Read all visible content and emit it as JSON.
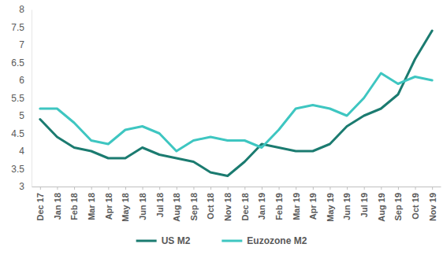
{
  "chart_data": {
    "type": "line",
    "categories": [
      "Dec 17",
      "Jan 18",
      "Feb 18",
      "Mar 18",
      "Apr 18",
      "May 18",
      "Jun 18",
      "Jul 18",
      "Aug 18",
      "Sep 18",
      "Oct 18",
      "Nov 18",
      "Dec 18",
      "Jan 19",
      "Feb 19",
      "Mar 19",
      "Apr 19",
      "May 19",
      "Jun 19",
      "Jul 19",
      "Aug 19",
      "Sep 19",
      "Oct 19",
      "Nov 19"
    ],
    "series": [
      {
        "name": "US M2",
        "color": "#1b7b70",
        "values": [
          4.9,
          4.4,
          4.1,
          4.0,
          3.8,
          3.8,
          4.1,
          3.9,
          3.8,
          3.7,
          3.4,
          3.3,
          3.7,
          4.2,
          4.1,
          4.0,
          4.0,
          4.2,
          4.7,
          5.0,
          5.2,
          5.6,
          6.6,
          7.4
        ]
      },
      {
        "name": "Euzozone M2",
        "color": "#3ec6c1",
        "values": [
          5.2,
          5.2,
          4.8,
          4.3,
          4.2,
          4.6,
          4.7,
          4.5,
          4.0,
          4.3,
          4.4,
          4.3,
          4.3,
          4.1,
          4.6,
          5.2,
          5.3,
          5.2,
          5.0,
          5.5,
          6.2,
          5.9,
          6.1,
          6.0
        ]
      }
    ],
    "ylim": [
      3,
      8
    ],
    "yticks": [
      3,
      3.5,
      4,
      4.5,
      5,
      5.5,
      6,
      6.5,
      7,
      7.5,
      8
    ],
    "grid": false,
    "legend": "bottom"
  }
}
